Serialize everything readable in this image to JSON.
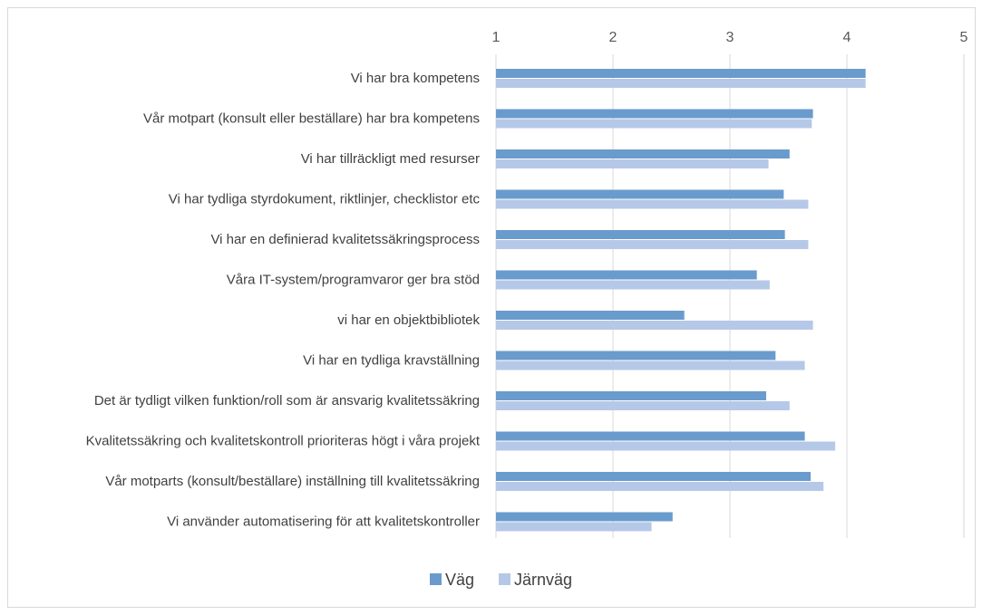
{
  "chart_data": {
    "type": "bar",
    "orientation": "horizontal",
    "title": "",
    "xlabel": "",
    "ylabel": "",
    "xlim": [
      1,
      5
    ],
    "x_ticks": [
      "1",
      "2",
      "3",
      "4",
      "5"
    ],
    "x_axis_position": "top",
    "grid": true,
    "legend_position": "bottom",
    "categories": [
      "Vi har bra kompetens",
      "Vår motpart (konsult eller beställare) har bra kompetens",
      "Vi har tillräckligt med resurser",
      "Vi har tydliga styrdokument, riktlinjer, checklistor etc",
      "Vi har en definierad kvalitetssäkringsprocess",
      "Våra IT-system/programvaror ger bra stöd",
      "vi har en objektbibliotek",
      "Vi har en tydliga kravställning",
      "Det är tydligt vilken funktion/roll som är ansvarig kvalitetssäkring",
      "Kvalitetssäkring och kvalitetskontroll prioriteras högt i våra projekt",
      "Vår motparts (konsult/beställare) inställning till kvalitetssäkring",
      "Vi använder automatisering för att kvalitetskontroller"
    ],
    "series": [
      {
        "name": "Väg",
        "color": "#6a9bcd",
        "values": [
          4.16,
          3.71,
          3.51,
          3.46,
          3.47,
          3.23,
          2.61,
          3.39,
          3.31,
          3.64,
          3.69,
          2.51
        ]
      },
      {
        "name": "Järnväg",
        "color": "#b6c8e8",
        "values": [
          4.16,
          3.7,
          3.33,
          3.67,
          3.67,
          3.34,
          3.71,
          3.64,
          3.51,
          3.9,
          3.8,
          2.33
        ]
      }
    ]
  }
}
